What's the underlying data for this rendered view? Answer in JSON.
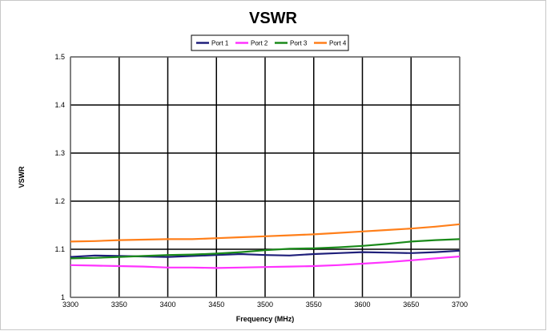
{
  "chart_data": {
    "type": "line",
    "title": "VSWR",
    "xlabel": "Frequency (MHz)",
    "ylabel": "VSWR",
    "xlim": [
      3300,
      3700
    ],
    "ylim": [
      1.0,
      1.5
    ],
    "x_ticks": [
      "3300",
      "3350",
      "3400",
      "3450",
      "3500",
      "3550",
      "3600",
      "3650",
      "3700"
    ],
    "y_ticks": [
      "1",
      "1.1",
      "1.2",
      "1.3",
      "1.4",
      "1.5"
    ],
    "grid": true,
    "legend_position": "top",
    "x": [
      3300,
      3325,
      3350,
      3375,
      3400,
      3425,
      3450,
      3475,
      3500,
      3525,
      3550,
      3575,
      3600,
      3625,
      3650,
      3675,
      3700
    ],
    "series": [
      {
        "name": "Port 1",
        "color": "#1f1f7a",
        "values": [
          1.084,
          1.087,
          1.086,
          1.085,
          1.084,
          1.086,
          1.088,
          1.09,
          1.088,
          1.087,
          1.09,
          1.092,
          1.094,
          1.093,
          1.092,
          1.094,
          1.097
        ]
      },
      {
        "name": "Port 2",
        "color": "#ff33ff",
        "values": [
          1.067,
          1.066,
          1.065,
          1.064,
          1.062,
          1.062,
          1.061,
          1.062,
          1.063,
          1.064,
          1.065,
          1.067,
          1.07,
          1.073,
          1.077,
          1.081,
          1.085
        ]
      },
      {
        "name": "Port 3",
        "color": "#1a8a1a",
        "values": [
          1.081,
          1.082,
          1.084,
          1.086,
          1.088,
          1.089,
          1.091,
          1.094,
          1.098,
          1.101,
          1.102,
          1.104,
          1.107,
          1.111,
          1.116,
          1.119,
          1.121
        ]
      },
      {
        "name": "Port 4",
        "color": "#ff7f1a",
        "values": [
          1.116,
          1.117,
          1.119,
          1.12,
          1.121,
          1.121,
          1.123,
          1.125,
          1.127,
          1.129,
          1.131,
          1.134,
          1.137,
          1.14,
          1.143,
          1.147,
          1.152
        ]
      }
    ]
  }
}
